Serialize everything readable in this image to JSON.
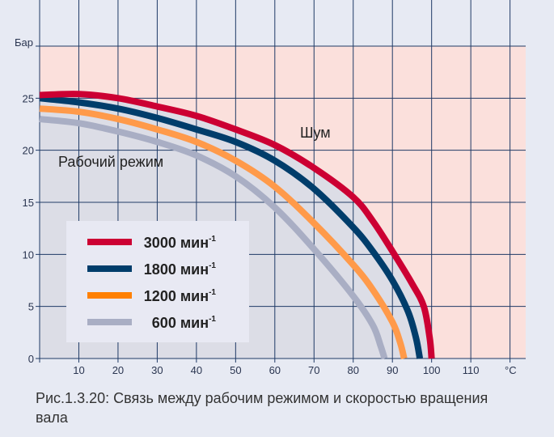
{
  "chart_data": {
    "type": "line",
    "ylabel": "Бар",
    "xunit": "°C",
    "xlim": [
      0,
      124
    ],
    "ylim": [
      0,
      30
    ],
    "xticks": [
      10,
      20,
      30,
      40,
      50,
      60,
      70,
      80,
      90,
      100,
      110
    ],
    "yticks": [
      0,
      5,
      10,
      15,
      20,
      25
    ],
    "grid": true,
    "legend_placement": "bottom-left",
    "region_labels": {
      "above": "Шум",
      "below": "Рабочий режим"
    },
    "region_colors": {
      "above": "#fbe0dc",
      "below": "#dcdde6"
    },
    "series": [
      {
        "name": "3000 мин",
        "exp": "-1",
        "color": "#cc0033",
        "points": [
          [
            0,
            25.3
          ],
          [
            10,
            25.4
          ],
          [
            20,
            25
          ],
          [
            30,
            24.2
          ],
          [
            40,
            23.3
          ],
          [
            50,
            22
          ],
          [
            60,
            20.5
          ],
          [
            70,
            18.3
          ],
          [
            80,
            15.5
          ],
          [
            85,
            13.2
          ],
          [
            90,
            10.3
          ],
          [
            95,
            7.2
          ],
          [
            98,
            5
          ],
          [
            99.5,
            2
          ],
          [
            100,
            0
          ]
        ]
      },
      {
        "name": "1800 мин",
        "exp": "-1",
        "color": "#003d6b",
        "points": [
          [
            0,
            25
          ],
          [
            10,
            24.6
          ],
          [
            20,
            24
          ],
          [
            30,
            23.1
          ],
          [
            40,
            22
          ],
          [
            50,
            20.8
          ],
          [
            60,
            19
          ],
          [
            70,
            16.3
          ],
          [
            80,
            12.6
          ],
          [
            85,
            10.3
          ],
          [
            90,
            7.5
          ],
          [
            94,
            4.5
          ],
          [
            96,
            2
          ],
          [
            97,
            0
          ]
        ]
      },
      {
        "name": "1200 мин",
        "exp": "-1",
        "color": "#ff9a4a",
        "legend_color": "#ff8000",
        "points": [
          [
            0,
            24
          ],
          [
            10,
            23.7
          ],
          [
            20,
            23
          ],
          [
            30,
            22
          ],
          [
            40,
            20.8
          ],
          [
            50,
            19
          ],
          [
            60,
            16.5
          ],
          [
            70,
            13
          ],
          [
            80,
            9
          ],
          [
            85,
            6.6
          ],
          [
            90,
            3.5
          ],
          [
            92,
            1.5
          ],
          [
            93,
            0
          ]
        ]
      },
      {
        "name": "600 мин",
        "exp": "-1",
        "color": "#a9aec4",
        "points": [
          [
            0,
            23
          ],
          [
            10,
            22.6
          ],
          [
            20,
            21.8
          ],
          [
            30,
            20.8
          ],
          [
            40,
            19.5
          ],
          [
            50,
            17.5
          ],
          [
            60,
            14.5
          ],
          [
            70,
            10.5
          ],
          [
            80,
            6
          ],
          [
            85,
            3.2
          ],
          [
            87,
            1.2
          ],
          [
            88,
            0
          ]
        ]
      }
    ]
  },
  "caption": "Рис.1.3.20: Связь между рабочим режимом и скоростью вращения вала"
}
